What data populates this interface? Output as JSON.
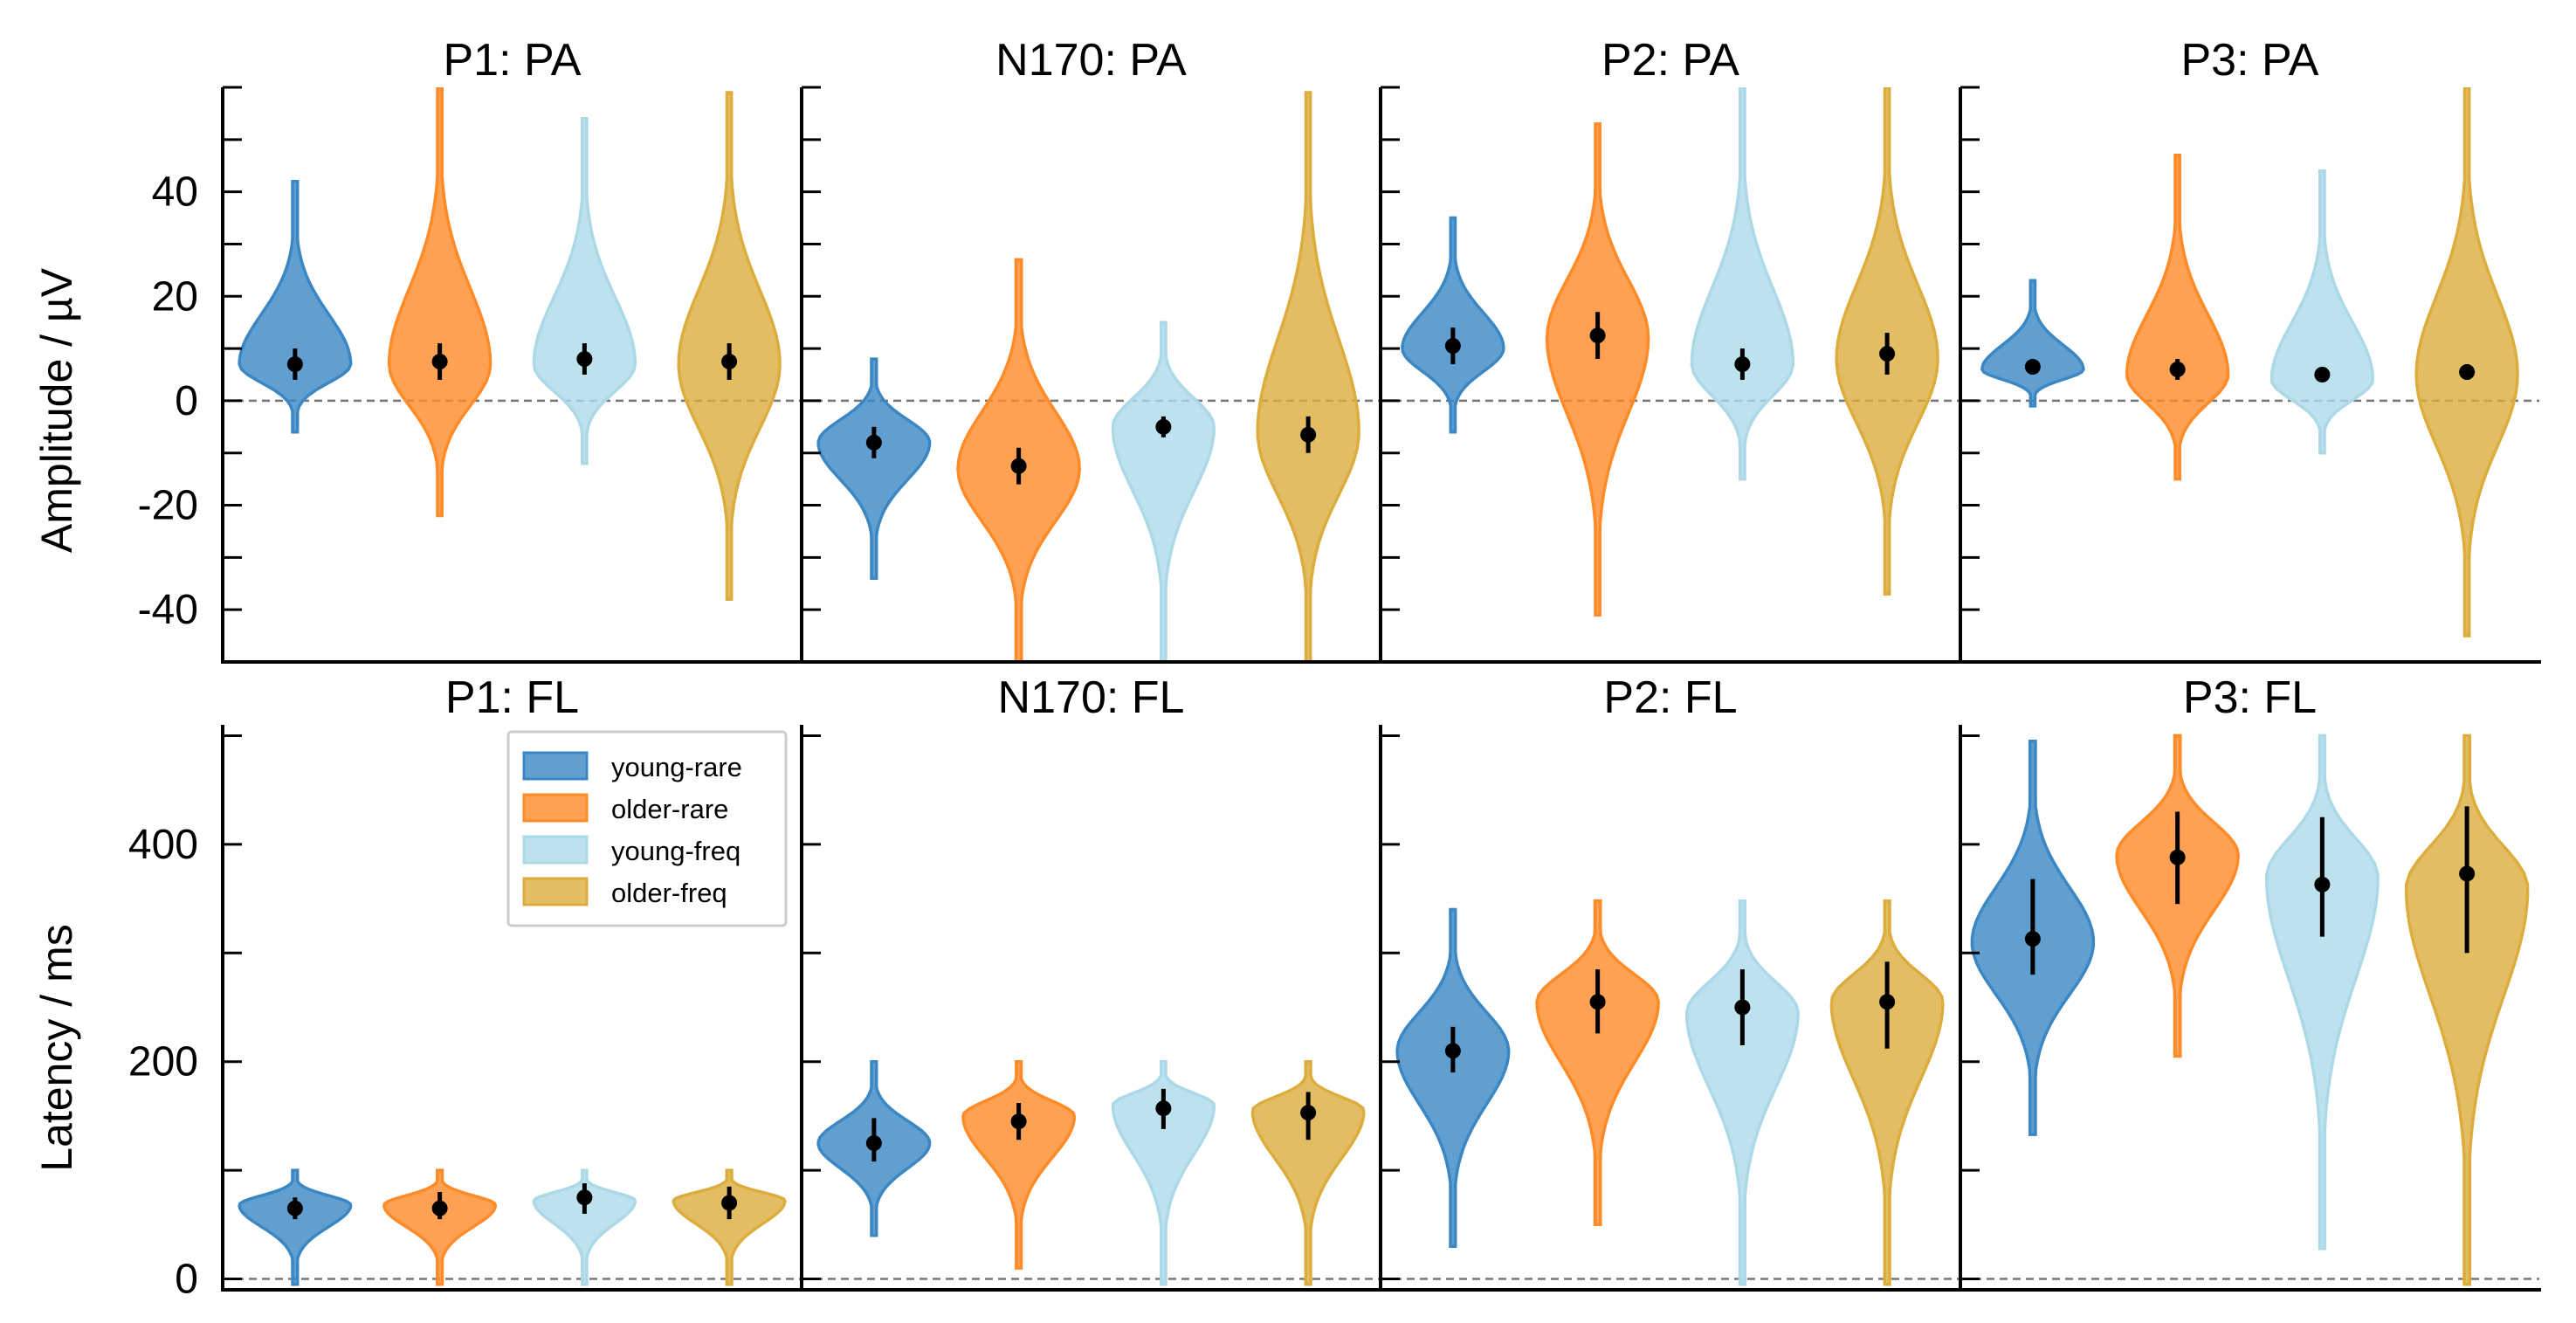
{
  "chart_data": {
    "type": "violin",
    "groups": [
      "young-rare",
      "older-rare",
      "young-freq",
      "older-freq"
    ],
    "colors": {
      "young-rare": "#3a87c4",
      "older-rare": "#ff8a28",
      "young-freq": "#acd9e8",
      "older-freq": "#dcad3d"
    },
    "legend": {
      "placement": "upper-right of panel P1: FL",
      "entries": [
        "young-rare",
        "older-rare",
        "young-freq",
        "older-freq"
      ]
    },
    "reference_line": {
      "y": 0,
      "style": "dashed"
    },
    "rows": [
      {
        "ylabel": "Amplitude / µV",
        "ylim": [
          -50,
          60
        ],
        "yticks": [
          -40,
          -20,
          0,
          20,
          40
        ],
        "panels": [
          {
            "title": "P1: PA",
            "violins": [
              {
                "group": "young-rare",
                "min": -6,
                "max": 42,
                "mode": 7,
                "width": 0.55,
                "mean": 7,
                "ci": [
                  4,
                  10
                ]
              },
              {
                "group": "older-rare",
                "min": -22,
                "max": 60,
                "mode": 7,
                "width": 0.5,
                "mean": 7.5,
                "ci": [
                  4,
                  11
                ]
              },
              {
                "group": "young-freq",
                "min": -12,
                "max": 54,
                "mode": 7,
                "width": 0.5,
                "mean": 8,
                "ci": [
                  5,
                  11
                ]
              },
              {
                "group": "older-freq",
                "min": -38,
                "max": 59,
                "mode": 7,
                "width": 0.5,
                "mean": 7.5,
                "ci": [
                  4,
                  11
                ]
              }
            ]
          },
          {
            "title": "N170: PA",
            "violins": [
              {
                "group": "young-rare",
                "min": -34,
                "max": 8,
                "mode": -8,
                "width": 0.55,
                "mean": -8,
                "ci": [
                  -11,
                  -5
                ]
              },
              {
                "group": "older-rare",
                "min": -50,
                "max": 27,
                "mode": -13,
                "width": 0.6,
                "mean": -12.5,
                "ci": [
                  -16,
                  -9
                ]
              },
              {
                "group": "young-freq",
                "min": -50,
                "max": 15,
                "mode": -5,
                "width": 0.5,
                "mean": -5,
                "ci": [
                  -7,
                  -3
                ]
              },
              {
                "group": "older-freq",
                "min": -50,
                "max": 59,
                "mode": -6,
                "width": 0.5,
                "mean": -6.5,
                "ci": [
                  -10,
                  -3
                ]
              }
            ]
          },
          {
            "title": "P2: PA",
            "violins": [
              {
                "group": "young-rare",
                "min": -6,
                "max": 35,
                "mode": 10,
                "width": 0.5,
                "mean": 10.5,
                "ci": [
                  7,
                  14
                ]
              },
              {
                "group": "older-rare",
                "min": -41,
                "max": 53,
                "mode": 12,
                "width": 0.5,
                "mean": 12.5,
                "ci": [
                  8,
                  17
                ]
              },
              {
                "group": "young-freq",
                "min": -15,
                "max": 60,
                "mode": 7,
                "width": 0.5,
                "mean": 7,
                "ci": [
                  4,
                  10
                ]
              },
              {
                "group": "older-freq",
                "min": -37,
                "max": 60,
                "mode": 8,
                "width": 0.5,
                "mean": 9,
                "ci": [
                  5,
                  13
                ]
              }
            ]
          },
          {
            "title": "P3: PA",
            "violins": [
              {
                "group": "young-rare",
                "min": -1,
                "max": 23,
                "mode": 6,
                "width": 0.5,
                "mean": 6.5,
                "ci": [
                  5,
                  8
                ]
              },
              {
                "group": "older-rare",
                "min": -15,
                "max": 47,
                "mode": 5,
                "width": 0.5,
                "mean": 6,
                "ci": [
                  4,
                  8
                ]
              },
              {
                "group": "young-freq",
                "min": -10,
                "max": 44,
                "mode": 4,
                "width": 0.5,
                "mean": 5,
                "ci": [
                  4,
                  6
                ]
              },
              {
                "group": "older-freq",
                "min": -45,
                "max": 60,
                "mode": 5,
                "width": 0.5,
                "mean": 5.5,
                "ci": [
                  4,
                  7
                ]
              }
            ]
          }
        ]
      },
      {
        "ylabel": "Latency / ms",
        "ylim": [
          -10,
          510
        ],
        "yticks": [
          0,
          200,
          400
        ],
        "panels": [
          {
            "title": "P1: FL",
            "violins": [
              {
                "group": "young-rare",
                "min": -5,
                "max": 100,
                "mode": 68,
                "width": 0.55,
                "mean": 65,
                "ci": [
                  55,
                  75
                ]
              },
              {
                "group": "older-rare",
                "min": -5,
                "max": 100,
                "mode": 68,
                "width": 0.55,
                "mean": 65,
                "ci": [
                  55,
                  80
                ]
              },
              {
                "group": "young-freq",
                "min": -5,
                "max": 100,
                "mode": 72,
                "width": 0.5,
                "mean": 75,
                "ci": [
                  60,
                  88
                ]
              },
              {
                "group": "older-freq",
                "min": -5,
                "max": 100,
                "mode": 72,
                "width": 0.55,
                "mean": 70,
                "ci": [
                  55,
                  85
                ]
              }
            ]
          },
          {
            "title": "N170: FL",
            "violins": [
              {
                "group": "young-rare",
                "min": 40,
                "max": 200,
                "mode": 125,
                "width": 0.55,
                "mean": 125,
                "ci": [
                  108,
                  148
                ]
              },
              {
                "group": "older-rare",
                "min": 10,
                "max": 200,
                "mode": 150,
                "width": 0.55,
                "mean": 145,
                "ci": [
                  128,
                  162
                ]
              },
              {
                "group": "young-freq",
                "min": -5,
                "max": 200,
                "mode": 160,
                "width": 0.5,
                "mean": 157,
                "ci": [
                  138,
                  175
                ]
              },
              {
                "group": "older-freq",
                "min": -5,
                "max": 200,
                "mode": 155,
                "width": 0.55,
                "mean": 153,
                "ci": [
                  128,
                  172
                ]
              }
            ]
          },
          {
            "title": "P2: FL",
            "violins": [
              {
                "group": "young-rare",
                "min": 30,
                "max": 340,
                "mode": 210,
                "width": 0.55,
                "mean": 210,
                "ci": [
                  190,
                  232
                ]
              },
              {
                "group": "older-rare",
                "min": 50,
                "max": 348,
                "mode": 255,
                "width": 0.6,
                "mean": 255,
                "ci": [
                  226,
                  285
                ]
              },
              {
                "group": "young-freq",
                "min": -5,
                "max": 348,
                "mode": 245,
                "width": 0.55,
                "mean": 250,
                "ci": [
                  215,
                  285
                ]
              },
              {
                "group": "older-freq",
                "min": -5,
                "max": 348,
                "mode": 255,
                "width": 0.55,
                "mean": 255,
                "ci": [
                  212,
                  292
                ]
              }
            ]
          },
          {
            "title": "P3: FL",
            "violins": [
              {
                "group": "young-rare",
                "min": 133,
                "max": 495,
                "mode": 310,
                "width": 0.6,
                "mean": 313,
                "ci": [
                  280,
                  368
                ]
              },
              {
                "group": "older-rare",
                "min": 205,
                "max": 500,
                "mode": 390,
                "width": 0.6,
                "mean": 388,
                "ci": [
                  345,
                  430
                ]
              },
              {
                "group": "young-freq",
                "min": 28,
                "max": 500,
                "mode": 370,
                "width": 0.55,
                "mean": 363,
                "ci": [
                  315,
                  425
                ]
              },
              {
                "group": "older-freq",
                "min": -5,
                "max": 500,
                "mode": 360,
                "width": 0.6,
                "mean": 373,
                "ci": [
                  300,
                  435
                ]
              }
            ]
          }
        ]
      }
    ]
  }
}
